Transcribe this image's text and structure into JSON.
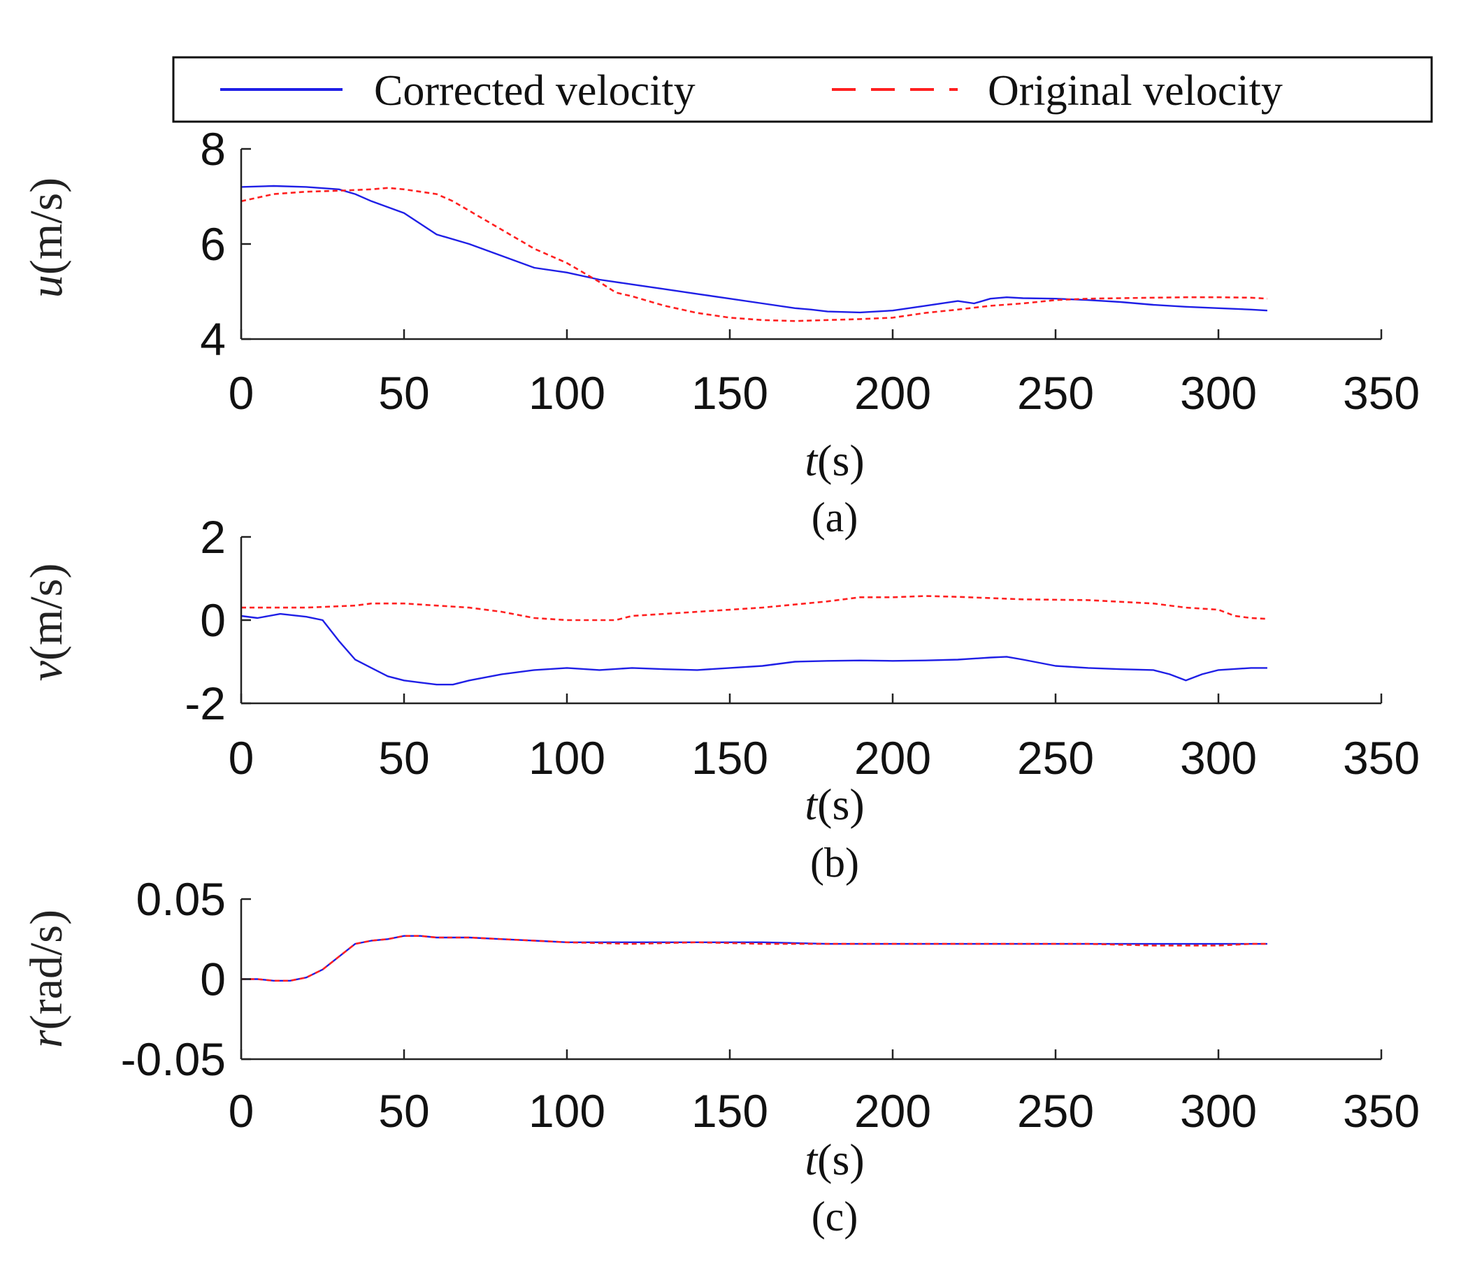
{
  "legend": {
    "entries": [
      {
        "label": "Corrected velocity",
        "color": "#1f1fe6",
        "style": "solid"
      },
      {
        "label": "Original velocity",
        "color": "#ff2020",
        "style": "dashed"
      }
    ]
  },
  "chart_data": [
    {
      "type": "line",
      "panel_label": "(a)",
      "ylabel_symbol": "u",
      "ylabel_unit": "(m/s)",
      "xlabel_symbol": "t",
      "xlabel_unit": "(s)",
      "xlim": [
        0,
        350
      ],
      "ylim": [
        4,
        8
      ],
      "xticks": [
        0,
        50,
        100,
        150,
        200,
        250,
        300,
        350
      ],
      "yticks": [
        4,
        6,
        8
      ],
      "xtick_labels": [
        "0",
        "50",
        "100",
        "150",
        "200",
        "250",
        "300",
        "350"
      ],
      "ytick_labels": [
        "4",
        "6",
        "8"
      ],
      "series": [
        {
          "name": "Corrected velocity",
          "x": [
            0,
            10,
            20,
            30,
            35,
            40,
            50,
            60,
            70,
            80,
            90,
            100,
            110,
            120,
            130,
            140,
            150,
            160,
            170,
            175,
            180,
            190,
            200,
            210,
            220,
            225,
            230,
            235,
            240,
            250,
            260,
            270,
            280,
            290,
            300,
            310,
            315
          ],
          "y": [
            7.2,
            7.22,
            7.2,
            7.15,
            7.05,
            6.9,
            6.65,
            6.2,
            6.0,
            5.75,
            5.5,
            5.4,
            5.25,
            5.15,
            5.05,
            4.95,
            4.85,
            4.75,
            4.65,
            4.62,
            4.58,
            4.56,
            4.6,
            4.7,
            4.8,
            4.75,
            4.85,
            4.88,
            4.86,
            4.85,
            4.82,
            4.78,
            4.72,
            4.68,
            4.65,
            4.62,
            4.6
          ]
        },
        {
          "name": "Original velocity",
          "x": [
            0,
            10,
            20,
            30,
            40,
            45,
            50,
            60,
            65,
            70,
            80,
            90,
            100,
            110,
            115,
            120,
            130,
            140,
            150,
            160,
            170,
            180,
            190,
            200,
            210,
            220,
            230,
            240,
            250,
            260,
            270,
            280,
            290,
            300,
            310,
            315
          ],
          "y": [
            6.9,
            7.05,
            7.1,
            7.12,
            7.15,
            7.18,
            7.15,
            7.05,
            6.9,
            6.7,
            6.3,
            5.9,
            5.6,
            5.2,
            4.98,
            4.9,
            4.7,
            4.55,
            4.45,
            4.4,
            4.38,
            4.4,
            4.42,
            4.45,
            4.55,
            4.62,
            4.7,
            4.75,
            4.82,
            4.85,
            4.86,
            4.87,
            4.88,
            4.88,
            4.87,
            4.85
          ]
        }
      ]
    },
    {
      "type": "line",
      "panel_label": "(b)",
      "ylabel_symbol": "v",
      "ylabel_unit": "(m/s)",
      "xlabel_symbol": "t",
      "xlabel_unit": "(s)",
      "xlim": [
        0,
        350
      ],
      "ylim": [
        -2,
        2
      ],
      "xticks": [
        0,
        50,
        100,
        150,
        200,
        250,
        300,
        350
      ],
      "yticks": [
        -2,
        0,
        2
      ],
      "xtick_labels": [
        "0",
        "50",
        "100",
        "150",
        "200",
        "250",
        "300",
        "350"
      ],
      "ytick_labels": [
        "-2",
        "0",
        "2"
      ],
      "series": [
        {
          "name": "Corrected velocity",
          "x": [
            0,
            5,
            12,
            20,
            25,
            30,
            35,
            40,
            45,
            50,
            55,
            60,
            65,
            70,
            80,
            90,
            100,
            110,
            120,
            130,
            140,
            150,
            160,
            170,
            180,
            190,
            200,
            210,
            220,
            230,
            235,
            240,
            250,
            260,
            270,
            280,
            285,
            290,
            295,
            300,
            310,
            315
          ],
          "y": [
            0.1,
            0.05,
            0.15,
            0.08,
            0.0,
            -0.5,
            -0.95,
            -1.15,
            -1.35,
            -1.45,
            -1.5,
            -1.55,
            -1.55,
            -1.45,
            -1.3,
            -1.2,
            -1.15,
            -1.2,
            -1.15,
            -1.18,
            -1.2,
            -1.15,
            -1.1,
            -1.0,
            -0.98,
            -0.97,
            -0.98,
            -0.97,
            -0.95,
            -0.9,
            -0.88,
            -0.95,
            -1.1,
            -1.15,
            -1.18,
            -1.2,
            -1.3,
            -1.45,
            -1.3,
            -1.2,
            -1.15,
            -1.15
          ]
        },
        {
          "name": "Original velocity",
          "x": [
            0,
            20,
            35,
            40,
            50,
            60,
            70,
            80,
            90,
            100,
            115,
            120,
            140,
            160,
            180,
            190,
            200,
            210,
            220,
            240,
            260,
            280,
            290,
            300,
            305,
            310,
            315
          ],
          "y": [
            0.3,
            0.3,
            0.35,
            0.4,
            0.4,
            0.35,
            0.3,
            0.2,
            0.05,
            0.0,
            0.0,
            0.1,
            0.2,
            0.3,
            0.45,
            0.55,
            0.55,
            0.58,
            0.56,
            0.5,
            0.48,
            0.4,
            0.3,
            0.25,
            0.1,
            0.05,
            0.03
          ]
        }
      ]
    },
    {
      "type": "line",
      "panel_label": "(c)",
      "ylabel_symbol": "r",
      "ylabel_unit": "(rad/s)",
      "xlabel_symbol": "t",
      "xlabel_unit": "(s)",
      "xlim": [
        0,
        350
      ],
      "ylim": [
        -0.05,
        0.05
      ],
      "xticks": [
        0,
        50,
        100,
        150,
        200,
        250,
        300,
        350
      ],
      "yticks": [
        -0.05,
        0,
        0.05
      ],
      "xtick_labels": [
        "0",
        "50",
        "100",
        "150",
        "200",
        "250",
        "300",
        "350"
      ],
      "ytick_labels": [
        "-0.05",
        "0",
        "0.05"
      ],
      "series": [
        {
          "name": "Corrected velocity",
          "x": [
            0,
            5,
            10,
            15,
            20,
            25,
            30,
            35,
            40,
            45,
            50,
            55,
            60,
            70,
            80,
            90,
            100,
            120,
            140,
            160,
            180,
            200,
            220,
            240,
            260,
            280,
            300,
            310,
            315
          ],
          "y": [
            0.0,
            0.0,
            -0.001,
            -0.001,
            0.001,
            0.006,
            0.014,
            0.022,
            0.024,
            0.025,
            0.027,
            0.027,
            0.026,
            0.026,
            0.025,
            0.024,
            0.023,
            0.023,
            0.023,
            0.023,
            0.022,
            0.022,
            0.022,
            0.022,
            0.022,
            0.022,
            0.022,
            0.022,
            0.022
          ]
        },
        {
          "name": "Original velocity",
          "x": [
            0,
            5,
            10,
            15,
            20,
            25,
            30,
            35,
            40,
            45,
            50,
            55,
            60,
            70,
            80,
            90,
            100,
            120,
            140,
            160,
            180,
            200,
            220,
            240,
            260,
            280,
            300,
            310,
            315
          ],
          "y": [
            0.0,
            0.0,
            -0.001,
            -0.001,
            0.001,
            0.006,
            0.014,
            0.022,
            0.024,
            0.025,
            0.027,
            0.027,
            0.026,
            0.026,
            0.025,
            0.024,
            0.023,
            0.022,
            0.023,
            0.022,
            0.022,
            0.022,
            0.022,
            0.022,
            0.022,
            0.021,
            0.021,
            0.022,
            0.022
          ]
        }
      ]
    }
  ]
}
